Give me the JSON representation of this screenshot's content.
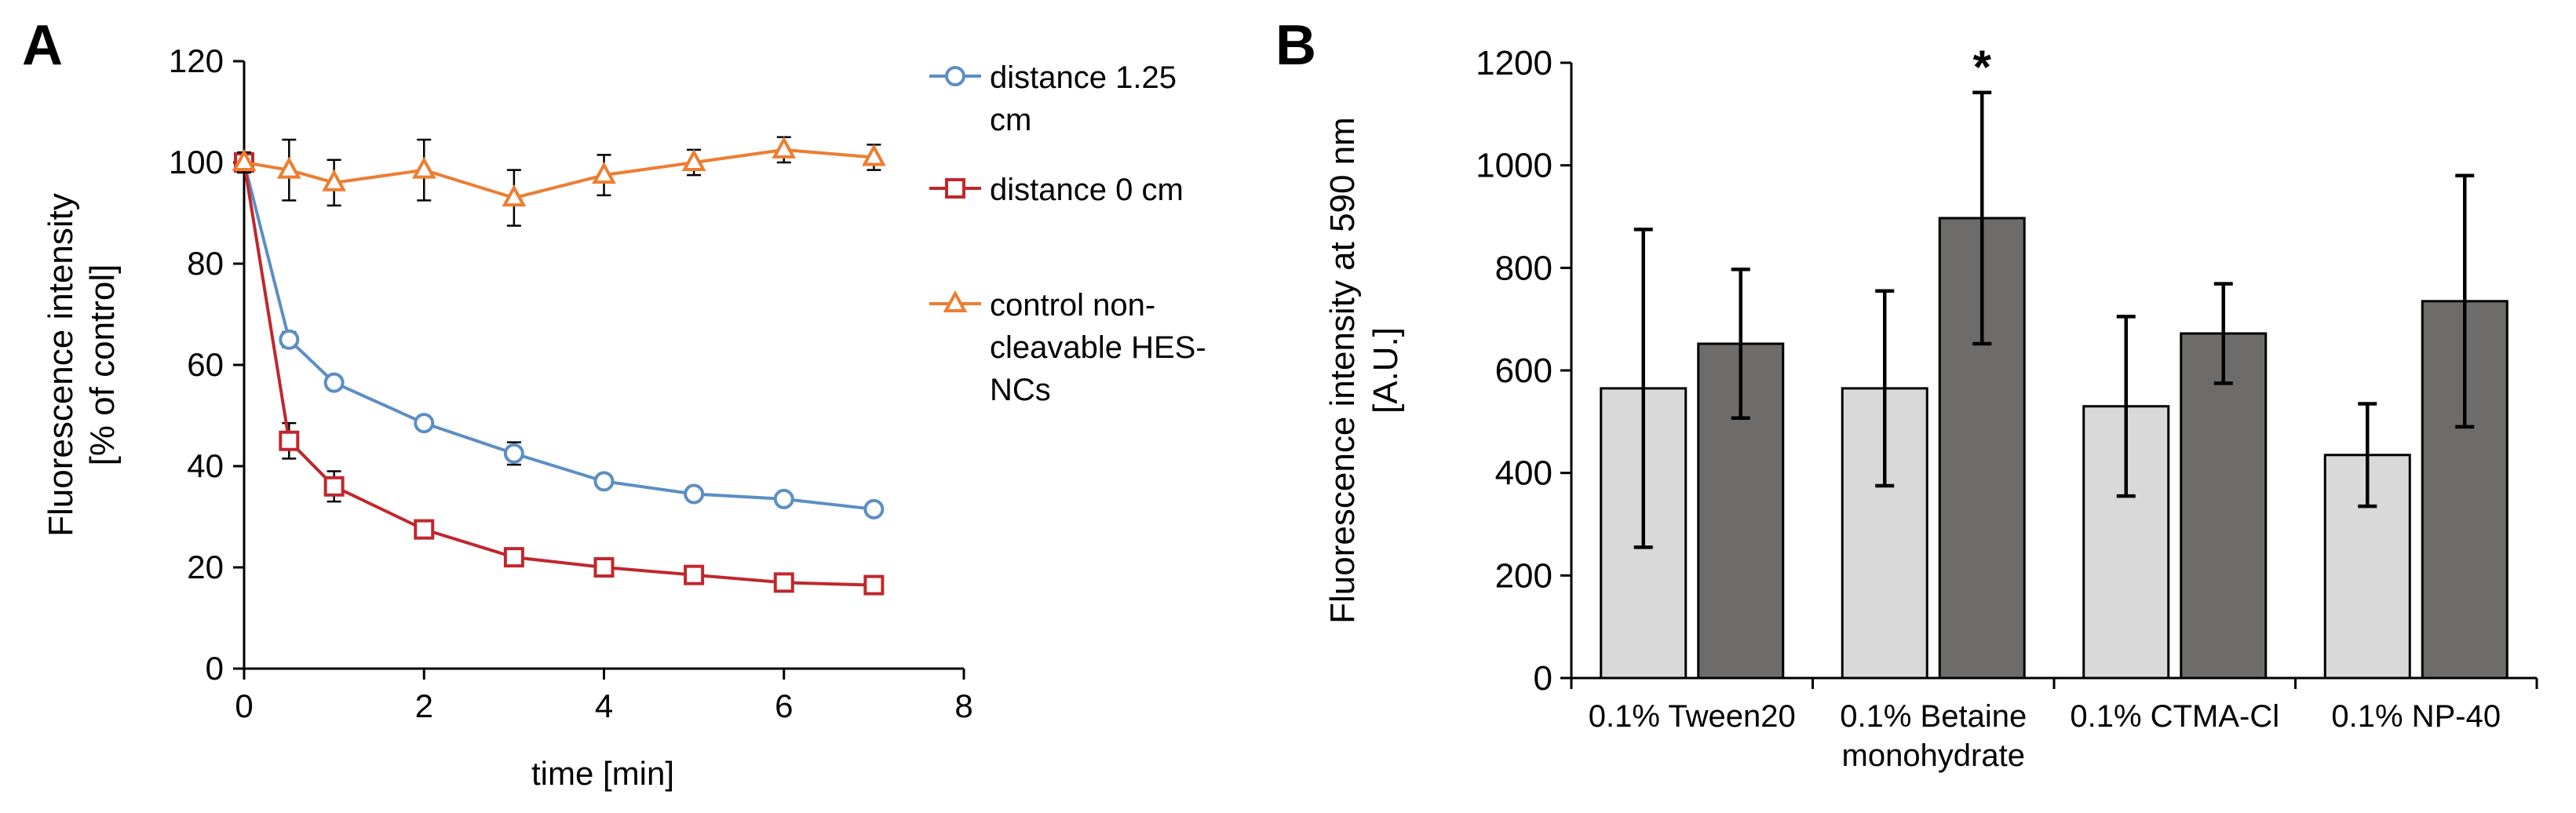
{
  "chart_data": [
    {
      "type": "line",
      "panel_label": "A",
      "xlabel": "time [min]",
      "ylabel_lines": [
        "Fluorescence  intensity",
        "[% of control]"
      ],
      "xlim": [
        0,
        8
      ],
      "ylim": [
        0,
        120
      ],
      "xticks": [
        0,
        2,
        4,
        6,
        8
      ],
      "yticks": [
        0,
        20,
        40,
        60,
        80,
        100,
        120
      ],
      "grid": false,
      "legend_position": "right",
      "series": [
        {
          "name": "distance 1.25 cm",
          "legend_lines": [
            "distance 1.25",
            "cm"
          ],
          "color": "#5b8ec4",
          "marker": "circle",
          "x": [
            0,
            0.5,
            1,
            2,
            3,
            4,
            5,
            6,
            7
          ],
          "y": [
            100,
            65,
            56.5,
            48.5,
            42.5,
            37,
            34.5,
            33.5,
            31.5
          ],
          "err": [
            1.5,
            1.5,
            1.2,
            1.2,
            2.2,
            1.2,
            1,
            1,
            1
          ]
        },
        {
          "name": "distance 0 cm",
          "legend_lines": [
            "distance 0 cm"
          ],
          "color": "#c0272d",
          "marker": "square",
          "x": [
            0,
            0.5,
            1,
            2,
            3,
            4,
            5,
            6,
            7
          ],
          "y": [
            100,
            45,
            36,
            27.5,
            22,
            20,
            18.5,
            17,
            16.5
          ],
          "err": [
            1.5,
            3.5,
            3,
            1,
            1,
            1,
            1,
            1,
            1
          ]
        },
        {
          "name": "control non-cleavable HES-NCs",
          "legend_lines": [
            "control non-",
            "cleavable HES-",
            "NCs"
          ],
          "color": "#ed7d31",
          "marker": "triangle",
          "x": [
            0,
            0.5,
            1,
            2,
            3,
            4,
            5,
            6,
            7
          ],
          "y": [
            100,
            98.5,
            96,
            98.5,
            93,
            97.5,
            100,
            102.5,
            101
          ],
          "err": [
            2,
            6,
            4.5,
            6,
            5.5,
            4,
            2.5,
            2.5,
            2.5
          ]
        }
      ]
    },
    {
      "type": "bar",
      "panel_label": "B",
      "ylabel_lines": [
        "Fluorescence intensity at 590 nm",
        "[A.U.]"
      ],
      "ylim": [
        0,
        1200
      ],
      "yticks": [
        0,
        200,
        400,
        600,
        800,
        1000,
        1200
      ],
      "grid": false,
      "categories": [
        {
          "lines": [
            "0.1% Tween20"
          ]
        },
        {
          "lines": [
            "0.1% Betaine",
            "monohydrate"
          ]
        },
        {
          "lines": [
            "0.1% CTMA-Cl"
          ]
        },
        {
          "lines": [
            "0.1% NP-40"
          ]
        }
      ],
      "series": [
        {
          "name": "light",
          "color": "#d9d9d9",
          "values": [
            565,
            565,
            530,
            435
          ],
          "err": [
            310,
            190,
            175,
            100
          ]
        },
        {
          "name": "dark",
          "color": "#6e6b6b",
          "values": [
            652,
            897,
            672,
            735
          ],
          "err": [
            145,
            245,
            97,
            245
          ]
        }
      ],
      "annotations": [
        {
          "category": 1,
          "series": 1,
          "text": "*"
        }
      ]
    }
  ]
}
